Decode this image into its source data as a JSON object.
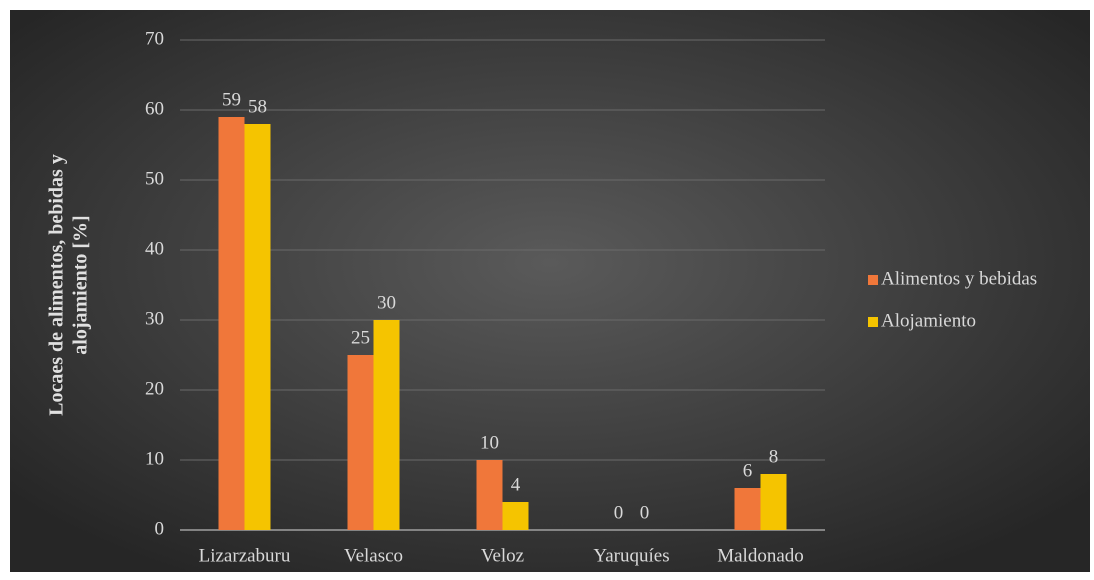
{
  "chart_data": {
    "type": "bar",
    "ylabel": [
      "Locaes  de alimentos, bebidas y",
      "alojamiento [%]"
    ],
    "categories": [
      "Lizarzaburu",
      "Velasco",
      "Veloz",
      "Yaruquíes",
      "Maldonado"
    ],
    "series": [
      {
        "name": "Alimentos y bebidas",
        "color": "#f0773a",
        "values": [
          59,
          25,
          10,
          0,
          6
        ]
      },
      {
        "name": "Alojamiento",
        "color": "#f5c400",
        "values": [
          58,
          30,
          4,
          0,
          8
        ]
      }
    ],
    "ylim": [
      0,
      70
    ],
    "yticks": [
      0,
      10,
      20,
      30,
      40,
      50,
      60,
      70
    ],
    "grid": true,
    "legend": "right"
  }
}
